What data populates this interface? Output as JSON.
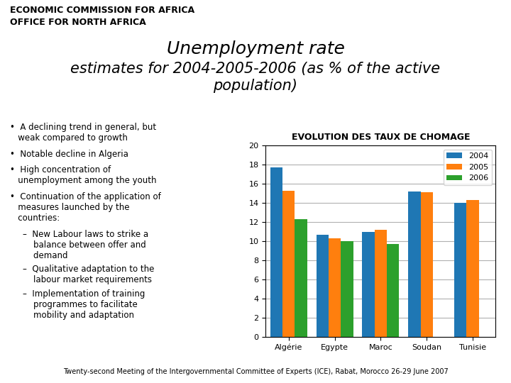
{
  "chart_data": {
    "type": "bar",
    "title": "EVOLUTION DES TAUX DE CHOMAGE",
    "categories": [
      "Algérie",
      "Egypte",
      "Maroc",
      "Soudan",
      "Tunisie"
    ],
    "series": [
      {
        "name": "2004",
        "color": "#1f77b4",
        "values": [
          17.7,
          10.7,
          11.0,
          15.2,
          14.0
        ]
      },
      {
        "name": "2005",
        "color": "#ff7f0e",
        "values": [
          15.3,
          10.3,
          11.2,
          15.1,
          14.3
        ]
      },
      {
        "name": "2006",
        "color": "#2ca02c",
        "values": [
          12.3,
          10.0,
          9.7,
          0,
          0
        ]
      }
    ],
    "ylim": [
      0,
      20
    ],
    "yticks": [
      0,
      2,
      4,
      6,
      8,
      10,
      12,
      14,
      16,
      18,
      20
    ],
    "grid": true,
    "legend": "upper right",
    "annotations": [
      "ECONOMIC COMMISSION FOR AFRICA",
      "OFFICE FOR NORTH AFRICA",
      "Unemployment rate",
      "estimates for 2004-2005-2006 (as % of the active",
      "population)",
      "•  A declining trend in general, but\n   weak compared to growth",
      "•  Notable decline in Algeria",
      "•  High concentration of\n   unemployment among the youth",
      "•  Continuation of the application of\n   measures launched by the\n   countries:",
      "–  New Labour laws to strike a\n    balance between offer and\n    demand",
      "–  Qualitative adaptation to the\n    labour market requirements",
      "–  Implementation of training\n    programmes to facilitate\n    mobility and adaptation",
      "Twenty-second Meeting of the Intergovernmental Committee of Experts (ICE), Rabat, Morocco 26-29 June 2007"
    ]
  }
}
